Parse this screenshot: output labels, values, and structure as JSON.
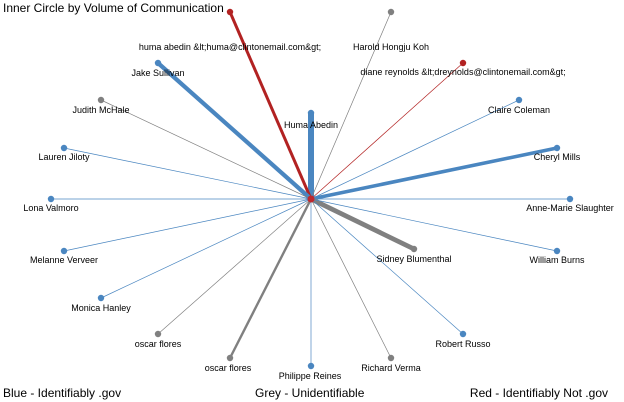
{
  "title": "Inner Circle by Volume of Communication",
  "legend": {
    "blue": "Blue - Identifiably .gov",
    "grey": "Grey - Unidentifiable",
    "red": "Red - Identifiably Not .gov"
  },
  "colors": {
    "blue": "#4a86c0",
    "grey": "#808080",
    "red": "#b22222",
    "center": "#c0282d"
  },
  "center": {
    "kind": "red"
  },
  "nodes": [
    {
      "label": "Huma Abedin",
      "kind": "blue",
      "volume": 10
    },
    {
      "label": "huma abedin &lt;huma@clintonemail.com&gt;",
      "kind": "red",
      "volume": 5
    },
    {
      "label": "Harold Hongju Koh",
      "kind": "grey",
      "volume": 1
    },
    {
      "label": "diane reynolds &lt;dreynolds@clintonemail.com&gt;",
      "kind": "red",
      "volume": 1
    },
    {
      "label": "Jake Sullivan",
      "kind": "blue",
      "volume": 7
    },
    {
      "label": "Claire Coleman",
      "kind": "blue",
      "volume": 1
    },
    {
      "label": "Judith McHale",
      "kind": "grey",
      "volume": 1
    },
    {
      "label": "Cheryl Mills",
      "kind": "blue",
      "volume": 6
    },
    {
      "label": "Lauren Jiloty",
      "kind": "blue",
      "volume": 1
    },
    {
      "label": "Lona Valmoro",
      "kind": "blue",
      "volume": 1
    },
    {
      "label": "Anne-Marie Slaughter",
      "kind": "blue",
      "volume": 1
    },
    {
      "label": "Melanne Verveer",
      "kind": "blue",
      "volume": 1
    },
    {
      "label": "Sidney Blumenthal",
      "kind": "grey",
      "volume": 8
    },
    {
      "label": "William Burns",
      "kind": "blue",
      "volume": 1
    },
    {
      "label": "Monica Hanley",
      "kind": "blue",
      "volume": 1
    },
    {
      "label": "oscar flores",
      "kind": "grey",
      "volume": 1
    },
    {
      "label": "Robert Russo",
      "kind": "blue",
      "volume": 1
    },
    {
      "label": "oscar flores",
      "kind": "grey",
      "volume": 4
    },
    {
      "label": "Philippe Reines",
      "kind": "blue",
      "volume": 1
    },
    {
      "label": "Richard Verma",
      "kind": "grey",
      "volume": 1
    }
  ]
}
